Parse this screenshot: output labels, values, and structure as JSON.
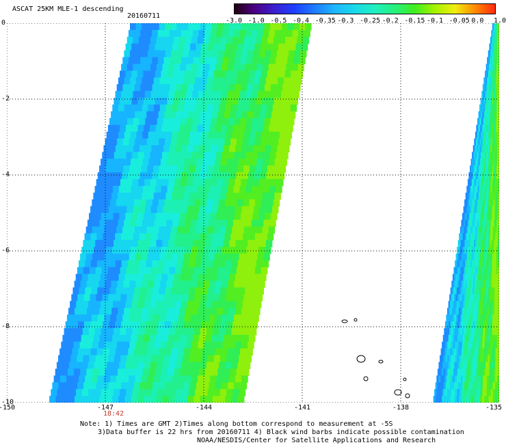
{
  "title": {
    "product": "ASCAT 25KM MLE-1 descending",
    "date": "20160711"
  },
  "colorbar": {
    "ticks": [
      "-3.0",
      "-1.0",
      "-0.5",
      "-0.4",
      "-0.35",
      "-0.3",
      "-0.25",
      "-0.2",
      "-0.15",
      "-0.1",
      "-0.05",
      "0.0",
      "1.0"
    ],
    "colors": [
      "#200010",
      "#4b0082",
      "#3a1fd0",
      "#1e40ff",
      "#1f7bff",
      "#1fb6ff",
      "#19d9e8",
      "#20f0c0",
      "#26f07c",
      "#40ee20",
      "#a6f200",
      "#f0ee10",
      "#ff8a00",
      "#ff2a10"
    ]
  },
  "axes": {
    "x_ticks": [
      "-150",
      "-147",
      "-144",
      "-141",
      "-138",
      "-135"
    ],
    "y_ticks": [
      "0",
      "-2",
      "-4",
      "-6",
      "-8",
      "-10"
    ],
    "xlim": [
      -150,
      -135
    ],
    "ylim": [
      -10,
      0
    ]
  },
  "swaths": [
    {
      "name": "main-swath",
      "time": "18:42"
    },
    {
      "name": "east-swath",
      "time": ""
    }
  ],
  "notes": {
    "line1": "Note: 1) Times are GMT 2)Times along bottom correspond to measurement at -5S",
    "line2": "3)Data buffer is 22 hrs from 20160711 4) Black wind barbs indicate possible contamination",
    "line3": "NOAA/NESDIS/Center for Satellite Applications and Research"
  }
}
